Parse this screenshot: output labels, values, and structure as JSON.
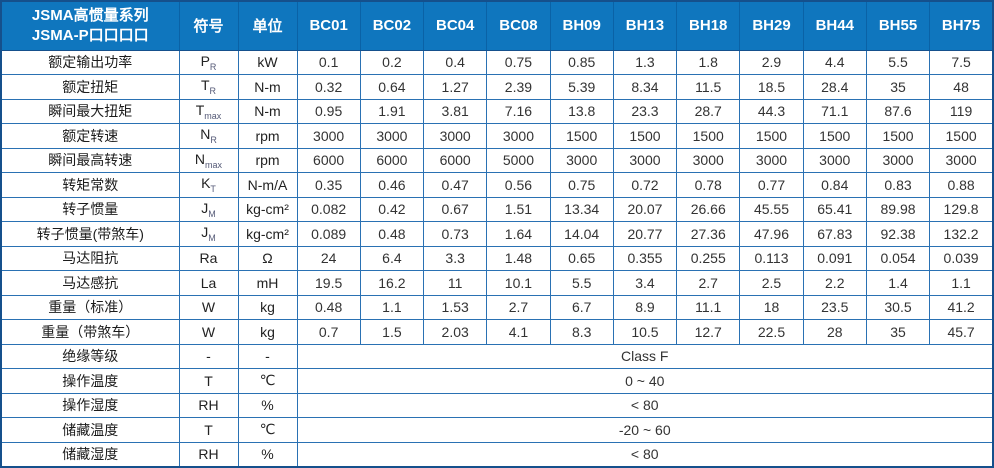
{
  "theme": {
    "header_bg": "#0f76be",
    "header_separator": "#0a62a6",
    "grid_border": "#2a71b3",
    "outer_border": "#15508c",
    "header_text": "#ffffff",
    "body_text": "#333333"
  },
  "table": {
    "header": {
      "title_line1": "JSMA高惯量系列",
      "title_line2": "JSMA-P口口口口",
      "symbol_label": "符号",
      "unit_label": "单位",
      "models": [
        "BC01",
        "BC02",
        "BC04",
        "BC08",
        "BH09",
        "BH13",
        "BH18",
        "BH29",
        "BH44",
        "BH55",
        "BH75"
      ]
    },
    "rows": [
      {
        "label": "额定输出功率",
        "symbol": "P",
        "symbol_sub": "R",
        "unit": "kW",
        "values": [
          "0.1",
          "0.2",
          "0.4",
          "0.75",
          "0.85",
          "1.3",
          "1.8",
          "2.9",
          "4.4",
          "5.5",
          "7.5"
        ]
      },
      {
        "label": "额定扭矩",
        "symbol": "T",
        "symbol_sub": "R",
        "unit": "N-m",
        "values": [
          "0.32",
          "0.64",
          "1.27",
          "2.39",
          "5.39",
          "8.34",
          "11.5",
          "18.5",
          "28.4",
          "35",
          "48"
        ]
      },
      {
        "label": "瞬间最大扭矩",
        "symbol": "T",
        "symbol_sub": "max",
        "unit": "N-m",
        "values": [
          "0.95",
          "1.91",
          "3.81",
          "7.16",
          "13.8",
          "23.3",
          "28.7",
          "44.3",
          "71.1",
          "87.6",
          "119"
        ]
      },
      {
        "label": "额定转速",
        "symbol": "N",
        "symbol_sub": "R",
        "unit": "rpm",
        "values": [
          "3000",
          "3000",
          "3000",
          "3000",
          "1500",
          "1500",
          "1500",
          "1500",
          "1500",
          "1500",
          "1500"
        ]
      },
      {
        "label": "瞬间最高转速",
        "symbol": "N",
        "symbol_sub": "max",
        "unit": "rpm",
        "values": [
          "6000",
          "6000",
          "6000",
          "5000",
          "3000",
          "3000",
          "3000",
          "3000",
          "3000",
          "3000",
          "3000"
        ]
      },
      {
        "label": "转矩常数",
        "symbol": "K",
        "symbol_sub": "T",
        "unit": "N-m/A",
        "values": [
          "0.35",
          "0.46",
          "0.47",
          "0.56",
          "0.75",
          "0.72",
          "0.78",
          "0.77",
          "0.84",
          "0.83",
          "0.88"
        ]
      },
      {
        "label": "转子惯量",
        "symbol": "J",
        "symbol_sub": "M",
        "unit": "kg-cm²",
        "values": [
          "0.082",
          "0.42",
          "0.67",
          "1.51",
          "13.34",
          "20.07",
          "26.66",
          "45.55",
          "65.41",
          "89.98",
          "129.8"
        ]
      },
      {
        "label": "转子惯量(带煞车)",
        "symbol": "J",
        "symbol_sub": "M",
        "unit": "kg-cm²",
        "values": [
          "0.089",
          "0.48",
          "0.73",
          "1.64",
          "14.04",
          "20.77",
          "27.36",
          "47.96",
          "67.83",
          "92.38",
          "132.2"
        ]
      },
      {
        "label": "马达阻抗",
        "symbol": "Ra",
        "symbol_sub": "",
        "unit": "Ω",
        "values": [
          "24",
          "6.4",
          "3.3",
          "1.48",
          "0.65",
          "0.355",
          "0.255",
          "0.113",
          "0.091",
          "0.054",
          "0.039"
        ]
      },
      {
        "label": "马达感抗",
        "symbol": "La",
        "symbol_sub": "",
        "unit": "mH",
        "values": [
          "19.5",
          "16.2",
          "11",
          "10.1",
          "5.5",
          "3.4",
          "2.7",
          "2.5",
          "2.2",
          "1.4",
          "1.1"
        ]
      },
      {
        "label": "重量（标准）",
        "symbol": "W",
        "symbol_sub": "",
        "unit": "kg",
        "values": [
          "0.48",
          "1.1",
          "1.53",
          "2.7",
          "6.7",
          "8.9",
          "11.1",
          "18",
          "23.5",
          "30.5",
          "41.2"
        ]
      },
      {
        "label": "重量（带煞车）",
        "symbol": "W",
        "symbol_sub": "",
        "unit": "kg",
        "values": [
          "0.7",
          "1.5",
          "2.03",
          "4.1",
          "8.3",
          "10.5",
          "12.7",
          "22.5",
          "28",
          "35",
          "45.7"
        ]
      }
    ],
    "merged_rows": [
      {
        "label": "绝缘等级",
        "symbol": "-",
        "unit": "-",
        "value": "Class F"
      },
      {
        "label": "操作温度",
        "symbol": "T",
        "unit": "℃",
        "value": "0 ~ 40"
      },
      {
        "label": "操作湿度",
        "symbol": "RH",
        "unit": "%",
        "value": "< 80"
      },
      {
        "label": "储藏温度",
        "symbol": "T",
        "unit": "℃",
        "value": "-20 ~ 60"
      },
      {
        "label": "储藏湿度",
        "symbol": "RH",
        "unit": "%",
        "value": "< 80"
      }
    ]
  }
}
